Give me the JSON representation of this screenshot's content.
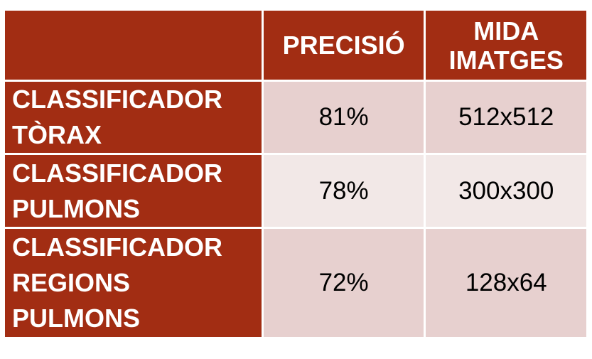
{
  "header": {
    "corner": "",
    "col1": "PRECISIÓ",
    "col2_line1": "MIDA",
    "col2_line2": "IMATGES"
  },
  "rows": [
    {
      "name_lines": [
        "CLASSIFICADOR",
        "TÒRAX"
      ],
      "precision": "81%",
      "size": "512x512"
    },
    {
      "name_lines": [
        "CLASSIFICADOR",
        "PULMONS"
      ],
      "precision": "78%",
      "size": "300x300"
    },
    {
      "name_lines": [
        "CLASSIFICADOR",
        "REGIONS",
        "PULMONS"
      ],
      "precision": "72%",
      "size": "128x64"
    }
  ],
  "colors": {
    "header_bg": "#a22d13",
    "row_odd_bg": "#e7d0cf",
    "row_even_bg": "#f2e8e7"
  }
}
